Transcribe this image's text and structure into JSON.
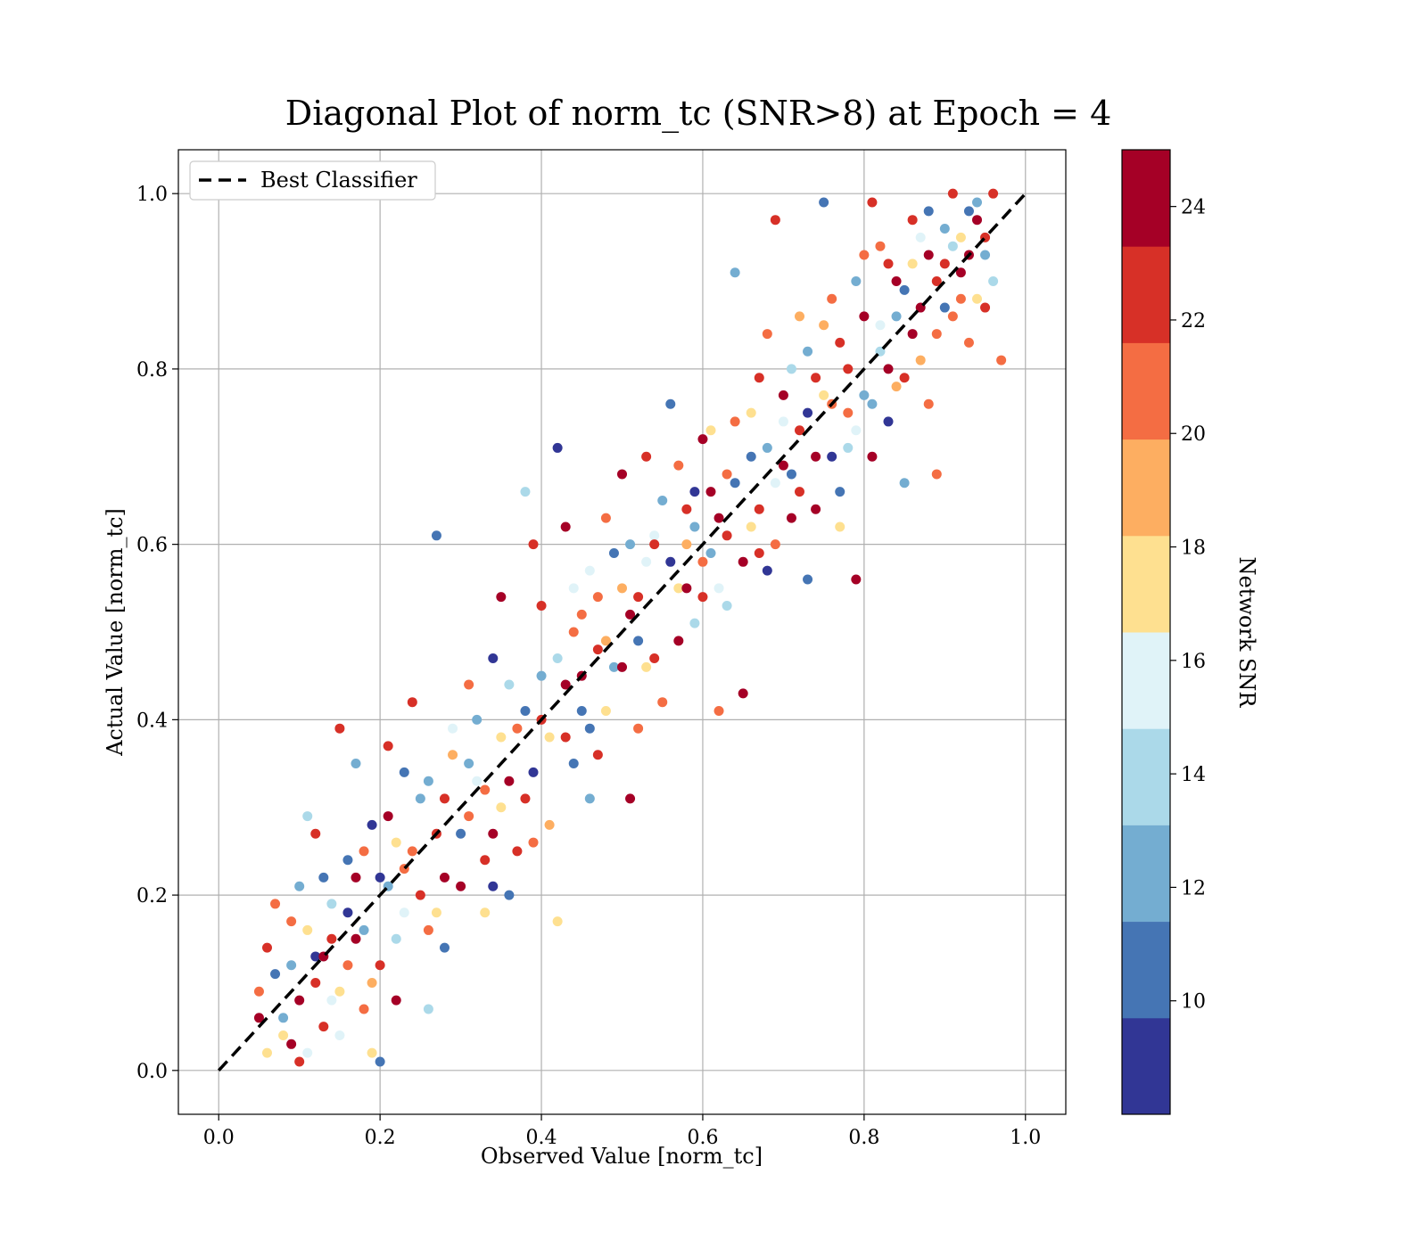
{
  "chart_data": {
    "type": "scatter",
    "title": "Diagonal Plot of norm_tc (SNR>8) at Epoch = 4",
    "xlabel": "Observed Value [norm_tc]",
    "ylabel": "Actual Value [norm_tc]",
    "xlim": [
      -0.05,
      1.05
    ],
    "ylim": [
      -0.05,
      1.05
    ],
    "xticks": [
      "0.0",
      "0.2",
      "0.4",
      "0.6",
      "0.8",
      "1.0"
    ],
    "yticks": [
      "0.0",
      "0.2",
      "0.4",
      "0.6",
      "0.8",
      "1.0"
    ],
    "grid": true,
    "legend": {
      "position": "top-left",
      "entries": [
        "Best Classifier"
      ]
    },
    "reference_line": {
      "name": "Best Classifier",
      "style": "dashed",
      "color": "#000000",
      "x": [
        0.0,
        1.0
      ],
      "y": [
        0.0,
        1.0
      ]
    },
    "colorbar": {
      "label": "Network SNR",
      "range": [
        8,
        25
      ],
      "ticks": [
        "10",
        "12",
        "14",
        "16",
        "18",
        "20",
        "22",
        "24"
      ],
      "colors": [
        "#313695",
        "#4575b4",
        "#74add1",
        "#abd9e9",
        "#e0f3f8",
        "#fee090",
        "#fdae61",
        "#f46d43",
        "#d73027",
        "#a50026"
      ]
    },
    "points": [
      [
        0.05,
        0.06,
        24
      ],
      [
        0.06,
        0.14,
        23
      ],
      [
        0.07,
        0.11,
        10
      ],
      [
        0.08,
        0.04,
        18
      ],
      [
        0.09,
        0.17,
        21
      ],
      [
        0.1,
        0.08,
        24
      ],
      [
        0.1,
        0.21,
        12
      ],
      [
        0.11,
        0.02,
        16
      ],
      [
        0.12,
        0.27,
        23
      ],
      [
        0.12,
        0.13,
        9
      ],
      [
        0.13,
        0.05,
        22
      ],
      [
        0.14,
        0.19,
        14
      ],
      [
        0.15,
        0.39,
        22
      ],
      [
        0.15,
        0.09,
        18
      ],
      [
        0.16,
        0.24,
        11
      ],
      [
        0.17,
        0.15,
        24
      ],
      [
        0.17,
        0.35,
        13
      ],
      [
        0.18,
        0.07,
        20
      ],
      [
        0.19,
        0.28,
        9
      ],
      [
        0.2,
        0.01,
        10
      ],
      [
        0.2,
        0.12,
        23
      ],
      [
        0.21,
        0.37,
        22
      ],
      [
        0.22,
        0.26,
        17
      ],
      [
        0.23,
        0.18,
        15
      ],
      [
        0.24,
        0.42,
        23
      ],
      [
        0.25,
        0.31,
        12
      ],
      [
        0.26,
        0.16,
        21
      ],
      [
        0.26,
        0.07,
        14
      ],
      [
        0.27,
        0.61,
        11
      ],
      [
        0.28,
        0.22,
        24
      ],
      [
        0.29,
        0.36,
        19
      ],
      [
        0.3,
        0.27,
        10
      ],
      [
        0.31,
        0.44,
        21
      ],
      [
        0.32,
        0.33,
        16
      ],
      [
        0.33,
        0.24,
        22
      ],
      [
        0.34,
        0.47,
        9
      ],
      [
        0.35,
        0.3,
        18
      ],
      [
        0.35,
        0.54,
        24
      ],
      [
        0.36,
        0.2,
        11
      ],
      [
        0.37,
        0.39,
        20
      ],
      [
        0.38,
        0.66,
        14
      ],
      [
        0.38,
        0.31,
        23
      ],
      [
        0.39,
        0.6,
        22
      ],
      [
        0.4,
        0.45,
        12
      ],
      [
        0.41,
        0.38,
        17
      ],
      [
        0.42,
        0.71,
        9
      ],
      [
        0.42,
        0.17,
        18
      ],
      [
        0.43,
        0.62,
        24
      ],
      [
        0.44,
        0.5,
        21
      ],
      [
        0.45,
        0.41,
        10
      ],
      [
        0.46,
        0.57,
        15
      ],
      [
        0.47,
        0.36,
        23
      ],
      [
        0.48,
        0.63,
        20
      ],
      [
        0.49,
        0.46,
        13
      ],
      [
        0.5,
        0.68,
        24
      ],
      [
        0.5,
        0.55,
        19
      ],
      [
        0.51,
        0.31,
        24
      ],
      [
        0.52,
        0.49,
        11
      ],
      [
        0.53,
        0.7,
        22
      ],
      [
        0.54,
        0.61,
        16
      ],
      [
        0.55,
        0.42,
        21
      ],
      [
        0.56,
        0.76,
        10
      ],
      [
        0.57,
        0.55,
        18
      ],
      [
        0.58,
        0.64,
        23
      ],
      [
        0.59,
        0.51,
        14
      ],
      [
        0.6,
        0.72,
        24
      ],
      [
        0.61,
        0.59,
        12
      ],
      [
        0.62,
        0.41,
        20
      ],
      [
        0.63,
        0.68,
        21
      ],
      [
        0.64,
        0.91,
        13
      ],
      [
        0.65,
        0.43,
        24
      ],
      [
        0.66,
        0.62,
        17
      ],
      [
        0.67,
        0.79,
        22
      ],
      [
        0.68,
        0.57,
        9
      ],
      [
        0.69,
        0.97,
        23
      ],
      [
        0.7,
        0.74,
        15
      ],
      [
        0.71,
        0.63,
        24
      ],
      [
        0.72,
        0.86,
        19
      ],
      [
        0.73,
        0.56,
        11
      ],
      [
        0.74,
        0.79,
        22
      ],
      [
        0.75,
        0.99,
        10
      ],
      [
        0.76,
        0.88,
        21
      ],
      [
        0.77,
        0.62,
        18
      ],
      [
        0.78,
        0.71,
        14
      ],
      [
        0.79,
        0.56,
        24
      ],
      [
        0.8,
        0.93,
        20
      ],
      [
        0.8,
        0.77,
        12
      ],
      [
        0.81,
        0.99,
        23
      ],
      [
        0.82,
        0.85,
        16
      ],
      [
        0.83,
        0.74,
        9
      ],
      [
        0.84,
        0.9,
        24
      ],
      [
        0.85,
        0.67,
        13
      ],
      [
        0.86,
        0.97,
        22
      ],
      [
        0.87,
        0.81,
        19
      ],
      [
        0.88,
        0.93,
        24
      ],
      [
        0.89,
        0.68,
        21
      ],
      [
        0.9,
        0.87,
        11
      ],
      [
        0.91,
        1.0,
        23
      ],
      [
        0.92,
        0.95,
        17
      ],
      [
        0.93,
        0.83,
        20
      ],
      [
        0.94,
        0.97,
        24
      ],
      [
        0.95,
        0.93,
        12
      ],
      [
        0.96,
        1.0,
        22
      ],
      [
        0.97,
        0.81,
        21
      ],
      [
        0.06,
        0.02,
        18
      ],
      [
        0.07,
        0.19,
        21
      ],
      [
        0.09,
        0.12,
        12
      ],
      [
        0.1,
        0.01,
        22
      ],
      [
        0.11,
        0.29,
        14
      ],
      [
        0.13,
        0.13,
        24
      ],
      [
        0.14,
        0.08,
        16
      ],
      [
        0.16,
        0.18,
        9
      ],
      [
        0.18,
        0.25,
        20
      ],
      [
        0.19,
        0.02,
        17
      ],
      [
        0.21,
        0.21,
        13
      ],
      [
        0.22,
        0.08,
        24
      ],
      [
        0.23,
        0.34,
        11
      ],
      [
        0.24,
        0.25,
        21
      ],
      [
        0.27,
        0.27,
        23
      ],
      [
        0.28,
        0.14,
        10
      ],
      [
        0.29,
        0.39,
        16
      ],
      [
        0.31,
        0.29,
        20
      ],
      [
        0.32,
        0.4,
        12
      ],
      [
        0.33,
        0.18,
        18
      ],
      [
        0.34,
        0.27,
        24
      ],
      [
        0.36,
        0.44,
        14
      ],
      [
        0.37,
        0.25,
        22
      ],
      [
        0.39,
        0.34,
        9
      ],
      [
        0.4,
        0.53,
        23
      ],
      [
        0.41,
        0.28,
        19
      ],
      [
        0.43,
        0.44,
        24
      ],
      [
        0.44,
        0.35,
        11
      ],
      [
        0.45,
        0.52,
        20
      ],
      [
        0.46,
        0.31,
        13
      ],
      [
        0.47,
        0.48,
        22
      ],
      [
        0.48,
        0.41,
        17
      ],
      [
        0.49,
        0.59,
        10
      ],
      [
        0.51,
        0.52,
        24
      ],
      [
        0.52,
        0.39,
        21
      ],
      [
        0.53,
        0.58,
        15
      ],
      [
        0.54,
        0.47,
        23
      ],
      [
        0.55,
        0.65,
        12
      ],
      [
        0.57,
        0.49,
        24
      ],
      [
        0.58,
        0.6,
        19
      ],
      [
        0.59,
        0.66,
        9
      ],
      [
        0.6,
        0.54,
        22
      ],
      [
        0.61,
        0.73,
        17
      ],
      [
        0.62,
        0.63,
        24
      ],
      [
        0.63,
        0.53,
        14
      ],
      [
        0.64,
        0.74,
        20
      ],
      [
        0.66,
        0.7,
        11
      ],
      [
        0.67,
        0.59,
        23
      ],
      [
        0.68,
        0.84,
        21
      ],
      [
        0.69,
        0.67,
        16
      ],
      [
        0.7,
        0.77,
        24
      ],
      [
        0.71,
        0.68,
        10
      ],
      [
        0.72,
        0.73,
        22
      ],
      [
        0.73,
        0.82,
        13
      ],
      [
        0.74,
        0.64,
        24
      ],
      [
        0.75,
        0.77,
        18
      ],
      [
        0.76,
        0.7,
        9
      ],
      [
        0.77,
        0.83,
        23
      ],
      [
        0.78,
        0.75,
        20
      ],
      [
        0.79,
        0.9,
        12
      ],
      [
        0.81,
        0.7,
        24
      ],
      [
        0.82,
        0.82,
        14
      ],
      [
        0.83,
        0.92,
        22
      ],
      [
        0.84,
        0.78,
        19
      ],
      [
        0.85,
        0.89,
        10
      ],
      [
        0.86,
        0.84,
        24
      ],
      [
        0.87,
        0.95,
        16
      ],
      [
        0.88,
        0.76,
        21
      ],
      [
        0.89,
        0.9,
        23
      ],
      [
        0.9,
        0.96,
        12
      ],
      [
        0.91,
        0.86,
        20
      ],
      [
        0.92,
        0.91,
        24
      ],
      [
        0.93,
        0.98,
        11
      ],
      [
        0.94,
        0.88,
        18
      ],
      [
        0.95,
        0.95,
        23
      ],
      [
        0.96,
        0.9,
        14
      ],
      [
        0.05,
        0.09,
        20
      ],
      [
        0.08,
        0.06,
        13
      ],
      [
        0.09,
        0.03,
        24
      ],
      [
        0.11,
        0.16,
        17
      ],
      [
        0.12,
        0.1,
        22
      ],
      [
        0.13,
        0.22,
        10
      ],
      [
        0.14,
        0.15,
        23
      ],
      [
        0.15,
        0.04,
        15
      ],
      [
        0.16,
        0.12,
        21
      ],
      [
        0.17,
        0.22,
        24
      ],
      [
        0.18,
        0.16,
        12
      ],
      [
        0.19,
        0.1,
        19
      ],
      [
        0.2,
        0.22,
        9
      ],
      [
        0.21,
        0.29,
        24
      ],
      [
        0.22,
        0.15,
        14
      ],
      [
        0.23,
        0.23,
        20
      ],
      [
        0.25,
        0.2,
        23
      ],
      [
        0.26,
        0.33,
        12
      ],
      [
        0.27,
        0.18,
        17
      ],
      [
        0.28,
        0.31,
        22
      ],
      [
        0.3,
        0.21,
        24
      ],
      [
        0.31,
        0.35,
        13
      ],
      [
        0.33,
        0.32,
        21
      ],
      [
        0.34,
        0.21,
        9
      ],
      [
        0.35,
        0.38,
        18
      ],
      [
        0.36,
        0.33,
        24
      ],
      [
        0.38,
        0.41,
        11
      ],
      [
        0.39,
        0.26,
        20
      ],
      [
        0.4,
        0.4,
        23
      ],
      [
        0.42,
        0.47,
        14
      ],
      [
        0.43,
        0.38,
        22
      ],
      [
        0.44,
        0.55,
        16
      ],
      [
        0.45,
        0.45,
        24
      ],
      [
        0.46,
        0.39,
        10
      ],
      [
        0.47,
        0.54,
        21
      ],
      [
        0.48,
        0.49,
        19
      ],
      [
        0.5,
        0.46,
        24
      ],
      [
        0.51,
        0.6,
        12
      ],
      [
        0.52,
        0.54,
        22
      ],
      [
        0.53,
        0.46,
        17
      ],
      [
        0.54,
        0.6,
        23
      ],
      [
        0.56,
        0.58,
        9
      ],
      [
        0.57,
        0.69,
        20
      ],
      [
        0.58,
        0.55,
        24
      ],
      [
        0.59,
        0.62,
        13
      ],
      [
        0.6,
        0.58,
        21
      ],
      [
        0.61,
        0.66,
        24
      ],
      [
        0.62,
        0.55,
        15
      ],
      [
        0.63,
        0.61,
        22
      ],
      [
        0.64,
        0.67,
        11
      ],
      [
        0.65,
        0.58,
        24
      ],
      [
        0.66,
        0.75,
        18
      ],
      [
        0.67,
        0.64,
        23
      ],
      [
        0.68,
        0.71,
        12
      ],
      [
        0.69,
        0.6,
        20
      ],
      [
        0.7,
        0.69,
        24
      ],
      [
        0.71,
        0.8,
        14
      ],
      [
        0.72,
        0.66,
        22
      ],
      [
        0.73,
        0.75,
        9
      ],
      [
        0.74,
        0.7,
        24
      ],
      [
        0.75,
        0.85,
        19
      ],
      [
        0.76,
        0.76,
        21
      ],
      [
        0.77,
        0.66,
        10
      ],
      [
        0.78,
        0.8,
        23
      ],
      [
        0.79,
        0.73,
        16
      ],
      [
        0.8,
        0.86,
        24
      ],
      [
        0.81,
        0.76,
        12
      ],
      [
        0.82,
        0.94,
        20
      ],
      [
        0.83,
        0.8,
        24
      ],
      [
        0.84,
        0.86,
        13
      ],
      [
        0.85,
        0.79,
        22
      ],
      [
        0.86,
        0.92,
        17
      ],
      [
        0.87,
        0.87,
        24
      ],
      [
        0.88,
        0.98,
        11
      ],
      [
        0.89,
        0.84,
        21
      ],
      [
        0.9,
        0.92,
        23
      ],
      [
        0.91,
        0.94,
        14
      ],
      [
        0.92,
        0.88,
        20
      ],
      [
        0.93,
        0.93,
        24
      ],
      [
        0.94,
        0.99,
        12
      ],
      [
        0.95,
        0.87,
        22
      ]
    ]
  }
}
